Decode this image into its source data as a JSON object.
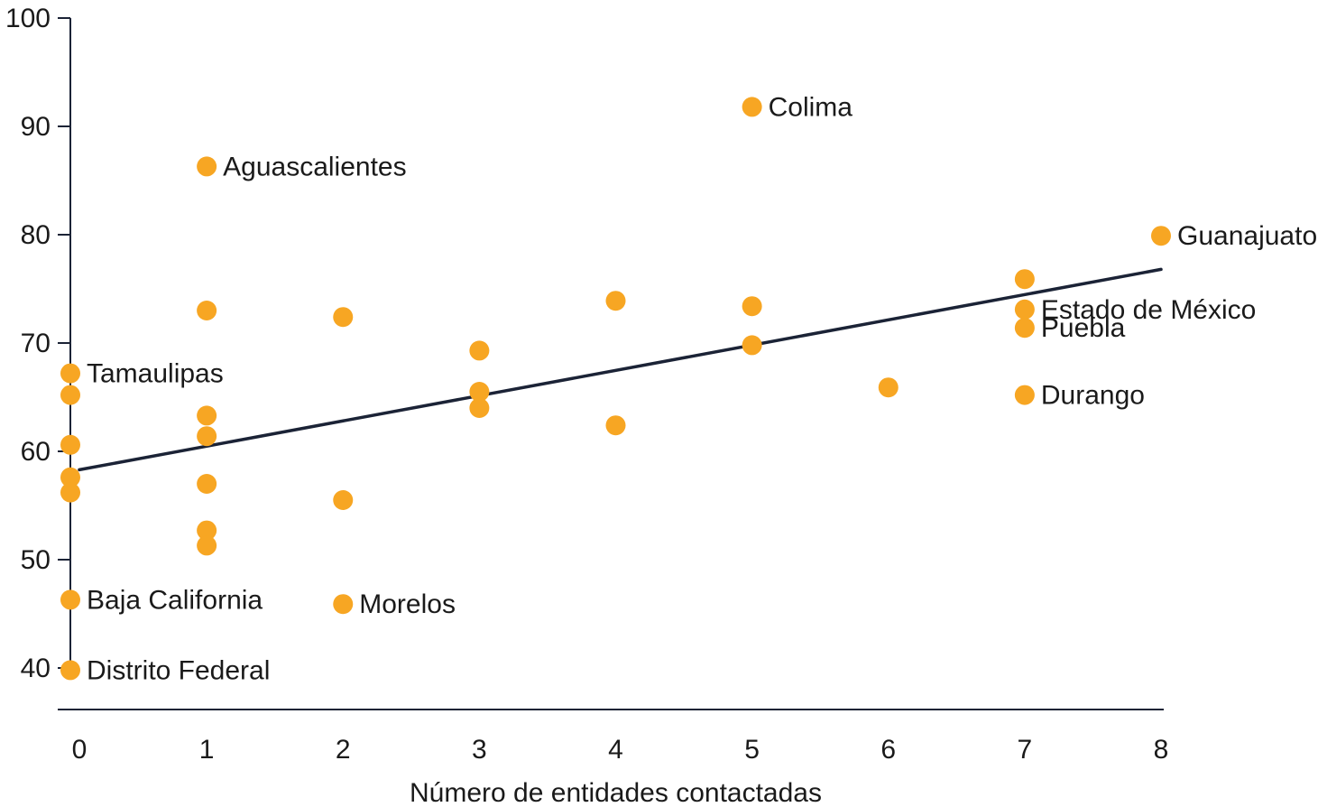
{
  "colors": {
    "point": "#F7A623",
    "trend": "#1B2336",
    "axis": "#1B2336"
  },
  "chart_data": {
    "type": "scatter",
    "xlabel": "Número de entidades contactadas",
    "ylabel": "",
    "xlim": [
      0,
      8
    ],
    "ylim": [
      40,
      100
    ],
    "x_ticks": [
      "0",
      "1",
      "2",
      "3",
      "4",
      "5",
      "6",
      "7",
      "8"
    ],
    "y_ticks": [
      "100",
      "90",
      "80",
      "70",
      "60",
      "50",
      "40"
    ],
    "grid": false,
    "points": [
      {
        "x": 0,
        "y": 67.2,
        "label": "Tamaulipas"
      },
      {
        "x": 0,
        "y": 65.2,
        "label": ""
      },
      {
        "x": 0,
        "y": 60.6,
        "label": ""
      },
      {
        "x": 0,
        "y": 57.6,
        "label": ""
      },
      {
        "x": 0,
        "y": 56.2,
        "label": ""
      },
      {
        "x": 0,
        "y": 46.3,
        "label": "Baja California"
      },
      {
        "x": 0,
        "y": 39.8,
        "label": "Distrito Federal"
      },
      {
        "x": 1,
        "y": 86.3,
        "label": "Aguascalientes"
      },
      {
        "x": 1,
        "y": 73.0,
        "label": ""
      },
      {
        "x": 1,
        "y": 63.3,
        "label": ""
      },
      {
        "x": 1,
        "y": 61.4,
        "label": ""
      },
      {
        "x": 1,
        "y": 57.0,
        "label": ""
      },
      {
        "x": 1,
        "y": 52.7,
        "label": ""
      },
      {
        "x": 1,
        "y": 51.3,
        "label": ""
      },
      {
        "x": 2,
        "y": 72.4,
        "label": ""
      },
      {
        "x": 2,
        "y": 55.5,
        "label": ""
      },
      {
        "x": 2,
        "y": 45.9,
        "label": "Morelos"
      },
      {
        "x": 3,
        "y": 69.3,
        "label": ""
      },
      {
        "x": 3,
        "y": 65.5,
        "label": ""
      },
      {
        "x": 3,
        "y": 64.0,
        "label": ""
      },
      {
        "x": 4,
        "y": 73.9,
        "label": ""
      },
      {
        "x": 4,
        "y": 62.4,
        "label": ""
      },
      {
        "x": 5,
        "y": 91.8,
        "label": "Colima"
      },
      {
        "x": 5,
        "y": 73.4,
        "label": ""
      },
      {
        "x": 5,
        "y": 69.8,
        "label": ""
      },
      {
        "x": 6,
        "y": 65.9,
        "label": ""
      },
      {
        "x": 7,
        "y": 75.9,
        "label": ""
      },
      {
        "x": 7,
        "y": 73.1,
        "label": "Estado de México"
      },
      {
        "x": 7,
        "y": 71.4,
        "label": "Puebla"
      },
      {
        "x": 7,
        "y": 65.2,
        "label": "Durango"
      },
      {
        "x": 8,
        "y": 79.9,
        "label": "Guanajuato"
      }
    ],
    "trendline": {
      "x0": 0,
      "y0": 58.3,
      "x1": 8,
      "y1": 76.8
    }
  }
}
